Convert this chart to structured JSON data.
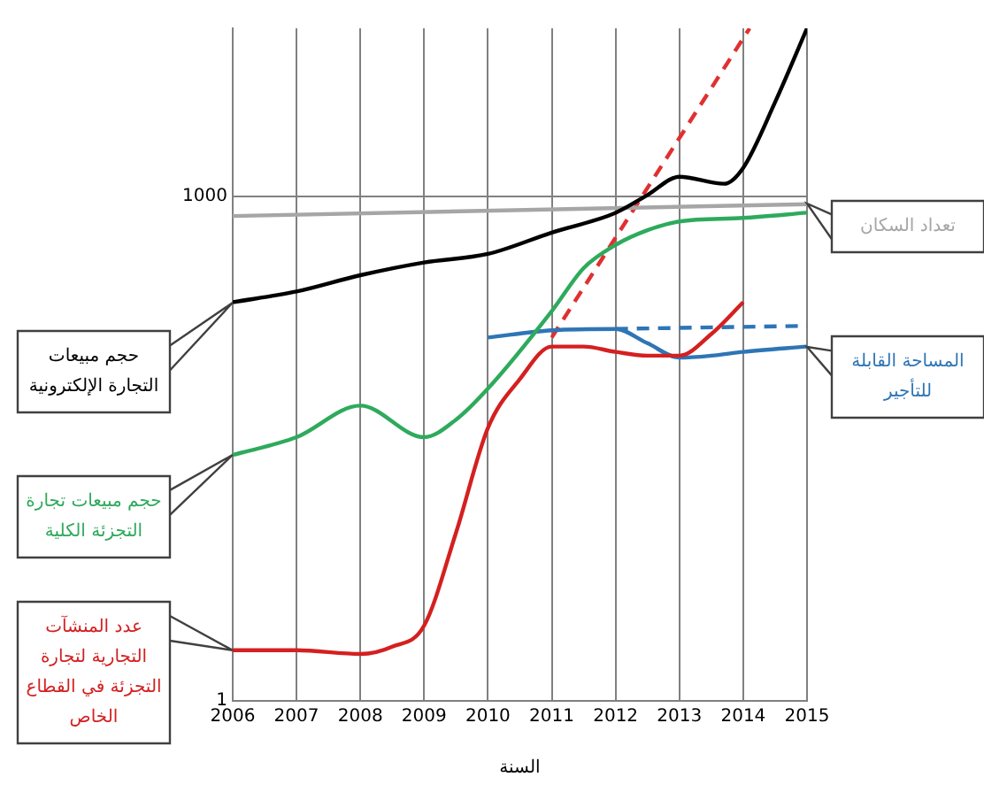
{
  "chart_data": {
    "type": "line",
    "xlabel": "السنة",
    "xlim": [
      2006,
      2015
    ],
    "xticks": [
      2006,
      2007,
      2008,
      2009,
      2010,
      2011,
      2012,
      2013,
      2014,
      2015
    ],
    "ylim": [
      1,
      10000
    ],
    "yticks": [
      1,
      1000
    ],
    "log": "y",
    "grid": true,
    "marker": "none",
    "series": [
      {
        "name": "حجم مبيعات التجارة الإلكترونية",
        "color": "#000000",
        "x": [
          2006,
          2007,
          2008,
          2009,
          2010,
          2011,
          2012,
          2012.5,
          2013,
          2013.7,
          2014,
          2014.5,
          2015
        ],
        "values": [
          235,
          272,
          340,
          405,
          455,
          610,
          800,
          1020,
          1310,
          1190,
          1480,
          3640,
          10000
        ]
      },
      {
        "name": "حجم مبيعات تجارة التجزئة الكلية",
        "color": "#2eaa5c",
        "x": [
          2006,
          2007,
          2008,
          2009,
          2009.5,
          2010,
          2011,
          2011.5,
          2012,
          2012.5,
          2013,
          2014,
          2015
        ],
        "values": [
          29,
          37,
          57,
          37,
          47,
          72,
          208,
          375,
          515,
          630,
          710,
          745,
          800
        ]
      },
      {
        "name": "عدد المنشآت التجارية لتجارة التجزئة في القطاع الخاص",
        "color": "#d42020",
        "x": [
          2006,
          2007,
          2008,
          2008.5,
          2009,
          2009.5,
          2010,
          2010.5,
          2011,
          2011.5,
          2012,
          2012.5,
          2013,
          2013.5,
          2014
        ],
        "values": [
          2,
          2,
          1.9,
          2.1,
          2.8,
          10,
          42,
          82,
          128,
          128,
          119,
          113,
          113,
          152,
          235
        ]
      },
      {
        "name": "تعداد السكان",
        "color": "#a6a6a6",
        "x": [
          2006,
          2015
        ],
        "values": [
          765,
          900
        ]
      },
      {
        "name": "المساحة القابلة للتأجير",
        "color": "#2e75b6",
        "x": [
          2010,
          2011,
          2012,
          2012.5,
          2013,
          2013.5,
          2014,
          2015
        ],
        "values": [
          145,
          160,
          163,
          134,
          110,
          113,
          119,
          128
        ]
      },
      {
        "color": "#e03030",
        "line_style": "dashed",
        "x": [
          2011,
          2014.1
        ],
        "values": [
          145,
          10000
        ]
      },
      {
        "color": "#2e75b6",
        "line_style": "dashed",
        "x": [
          2012,
          2015
        ],
        "values": [
          163,
          170
        ]
      }
    ]
  }
}
